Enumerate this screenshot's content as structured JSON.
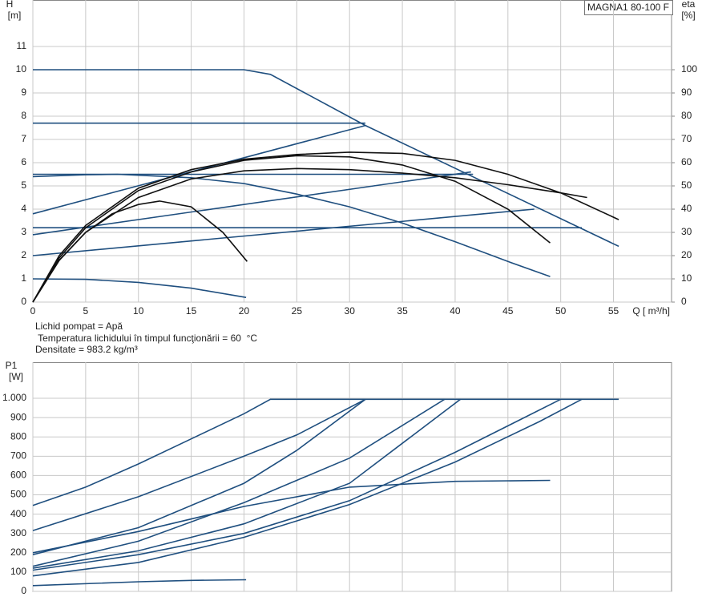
{
  "chart_data": [
    {
      "type": "line",
      "title": "MAGNA1 80-100 F",
      "y_label": "H",
      "y_unit": "[m]",
      "y2_label": "eta",
      "y2_unit": "[%]",
      "x_label": "Q [ m³/h]",
      "annotations": [
        "Lichid pompat = Apă",
        " Temperatura lichidului în timpul funcţionării = 60  °C",
        "Densitate = 983.2  kg/m³"
      ],
      "xlim": [
        0,
        60.5
      ],
      "ylim": [
        0,
        13
      ],
      "y2lim": [
        0,
        130
      ],
      "xticks": [
        0,
        5,
        10,
        15,
        20,
        25,
        30,
        35,
        40,
        45,
        50,
        55
      ],
      "yticks": [
        0,
        1,
        2,
        3,
        4,
        5,
        6,
        7,
        8,
        9,
        10,
        11
      ],
      "y2ticks": [
        0,
        10,
        20,
        30,
        40,
        50,
        60,
        70,
        80,
        90,
        100
      ],
      "grid": true,
      "series": [
        {
          "color": "#1f4f7f",
          "x": [
            0,
            20,
            22.5,
            31.5,
            55.5
          ],
          "values": [
            10,
            10,
            9.8,
            7.6,
            2.4
          ]
        },
        {
          "color": "#1f4f7f",
          "x": [
            0,
            31.5
          ],
          "values": [
            7.7,
            7.7
          ]
        },
        {
          "color": "#1f4f7f",
          "x": [
            0,
            41.7
          ],
          "values": [
            5.5,
            5.5
          ]
        },
        {
          "color": "#1f4f7f",
          "x": [
            0,
            52
          ],
          "values": [
            3.2,
            3.2
          ]
        },
        {
          "color": "#1f4f7f",
          "x": [
            0,
            31.5
          ],
          "values": [
            3.8,
            7.6
          ]
        },
        {
          "color": "#1f4f7f",
          "x": [
            0,
            41.5
          ],
          "values": [
            2.9,
            5.6
          ]
        },
        {
          "color": "#1f4f7f",
          "x": [
            0,
            47.5
          ],
          "values": [
            2,
            4
          ]
        },
        {
          "color": "#1f4f7f",
          "x": [
            0,
            5,
            8,
            15,
            20,
            25,
            30,
            35,
            40,
            45,
            49
          ],
          "values": [
            5.4,
            5.48,
            5.5,
            5.35,
            5.1,
            4.65,
            4.1,
            3.4,
            2.6,
            1.75,
            1.1
          ]
        },
        {
          "color": "#1f4f7f",
          "x": [
            0,
            5,
            10,
            15,
            20.2
          ],
          "values": [
            1,
            0.98,
            0.85,
            0.6,
            0.2
          ]
        },
        {
          "color": "#111111",
          "axis": "y2",
          "x": [
            0,
            2.5,
            5,
            7.5,
            10,
            12,
            15,
            18,
            20.3
          ],
          "values": [
            0,
            18,
            30,
            38,
            42,
            43.5,
            41,
            30,
            17.5
          ]
        },
        {
          "color": "#111111",
          "axis": "y2",
          "x": [
            0,
            2.5,
            5,
            10,
            15,
            20,
            25,
            30,
            35,
            40,
            45,
            49
          ],
          "values": [
            0,
            19,
            32,
            48,
            56,
            61,
            63,
            62.5,
            59,
            52,
            40,
            25.5
          ]
        },
        {
          "color": "#111111",
          "axis": "y2",
          "x": [
            0,
            2.5,
            5,
            10,
            15,
            20,
            25,
            30,
            35,
            40,
            45,
            50,
            55.5
          ],
          "values": [
            0,
            20,
            33,
            49,
            57,
            61.5,
            63.5,
            64.5,
            64,
            61,
            55,
            47,
            35.5
          ]
        },
        {
          "color": "#111111",
          "axis": "y2",
          "x": [
            0,
            2.5,
            5,
            10,
            15,
            20,
            25,
            30,
            35,
            40,
            45,
            50,
            52.5
          ],
          "values": [
            0,
            18,
            30,
            45,
            53,
            56.5,
            57.5,
            57,
            55.5,
            53.5,
            50.5,
            47,
            45
          ]
        }
      ]
    },
    {
      "type": "line",
      "y_label": "P1",
      "y_unit": "[W]",
      "xlim": [
        0,
        60.5
      ],
      "ylim": [
        0,
        1187
      ],
      "yticks": [
        0,
        100,
        200,
        300,
        400,
        500,
        600,
        700,
        800,
        900,
        {
          "value": 1000,
          "label": "1.000"
        }
      ],
      "grid": true,
      "series": [
        {
          "color": "#1f4f7f",
          "x": [
            0,
            5,
            10,
            15,
            20,
            22.5,
            55.5
          ],
          "values": [
            445,
            540,
            660,
            790,
            920,
            995,
            995
          ]
        },
        {
          "color": "#1f4f7f",
          "x": [
            0,
            10,
            20,
            25,
            31.5
          ],
          "values": [
            315,
            490,
            700,
            810,
            995
          ]
        },
        {
          "color": "#1f4f7f",
          "x": [
            0,
            10,
            20,
            25,
            31.5
          ],
          "values": [
            190,
            330,
            560,
            730,
            995
          ]
        },
        {
          "color": "#1f4f7f",
          "x": [
            0,
            10,
            20,
            30,
            39
          ],
          "values": [
            130,
            260,
            460,
            690,
            995
          ]
        },
        {
          "color": "#1f4f7f",
          "x": [
            0,
            10,
            20,
            30,
            40.5
          ],
          "values": [
            120,
            210,
            350,
            560,
            995
          ]
        },
        {
          "color": "#1f4f7f",
          "x": [
            0,
            10,
            20,
            30,
            40,
            49
          ],
          "values": [
            200,
            310,
            440,
            540,
            570,
            575
          ]
        },
        {
          "color": "#1f4f7f",
          "x": [
            0,
            10,
            20,
            30,
            40,
            48,
            52
          ],
          "values": [
            80,
            150,
            280,
            450,
            670,
            880,
            995
          ]
        },
        {
          "color": "#1f4f7f",
          "x": [
            0,
            10,
            20,
            30,
            40,
            50
          ],
          "values": [
            110,
            190,
            300,
            470,
            720,
            995
          ]
        },
        {
          "color": "#1f4f7f",
          "x": [
            0,
            10,
            15,
            20.2
          ],
          "values": [
            30,
            50,
            57,
            60
          ]
        }
      ]
    }
  ]
}
